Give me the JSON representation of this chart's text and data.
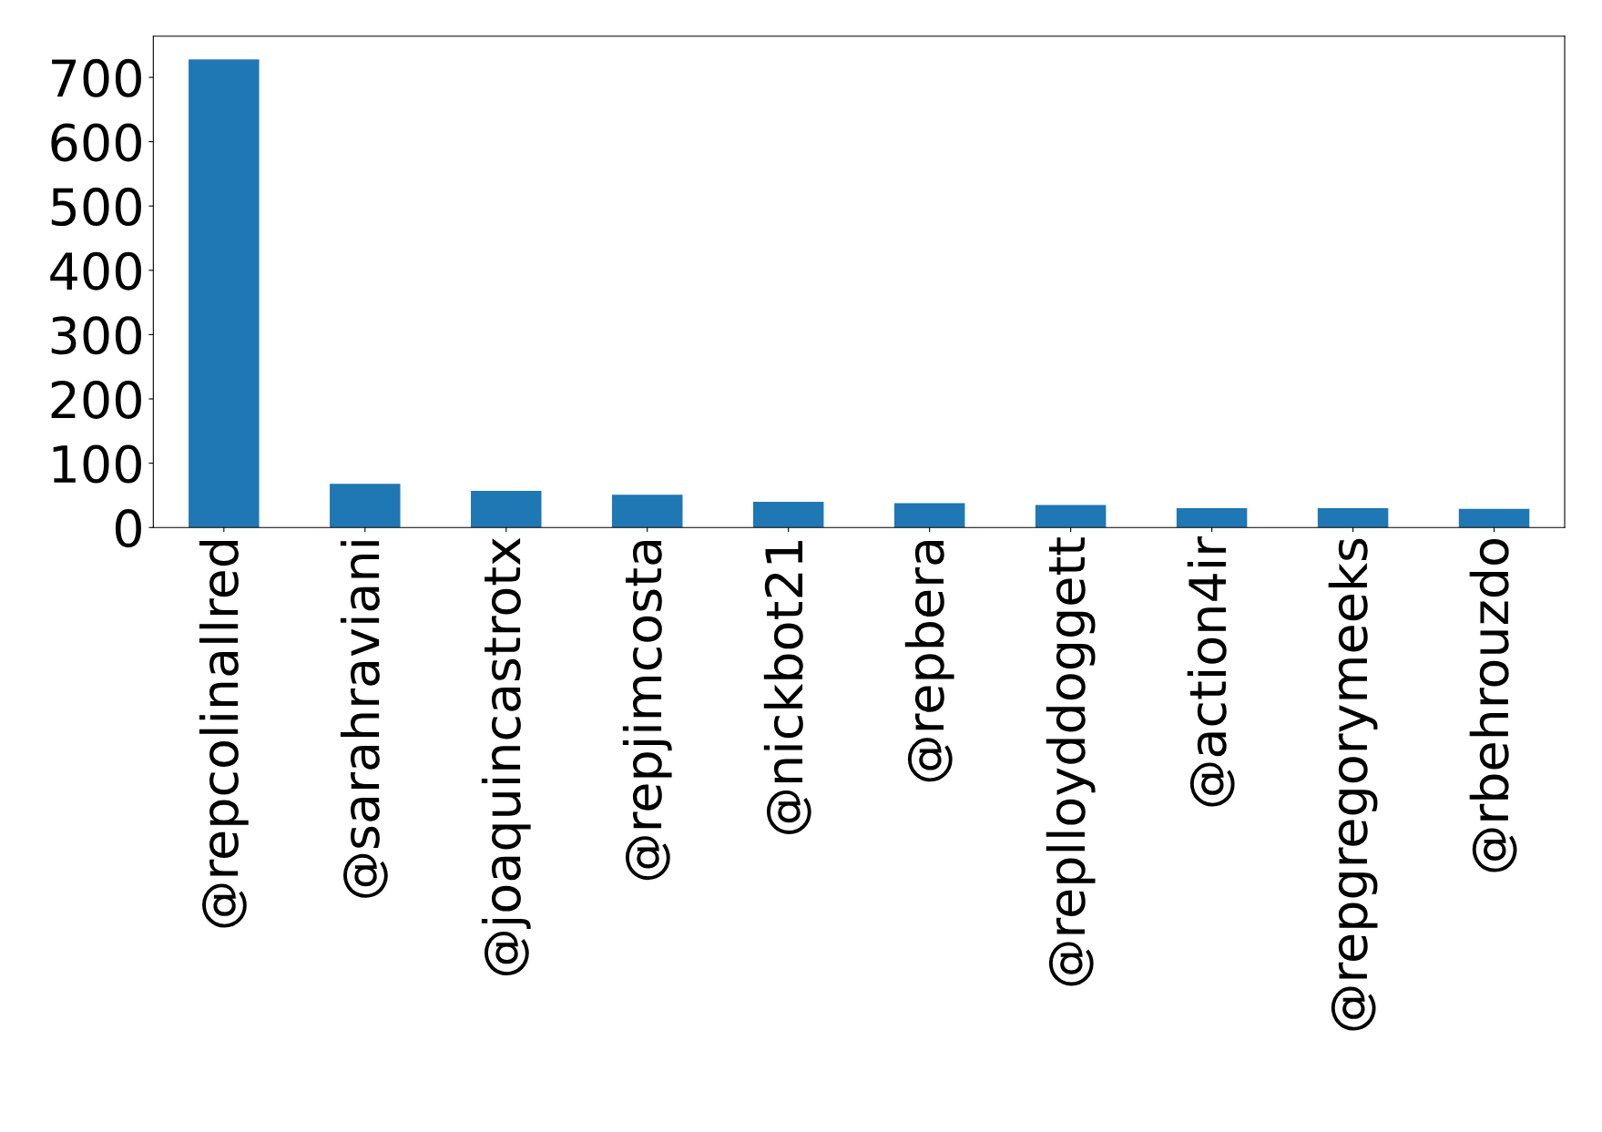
{
  "chart_data": {
    "type": "bar",
    "categories": [
      "@repcolinallred",
      "@sarahraviani",
      "@joaquincastrotx",
      "@repjimcosta",
      "@nickbot21",
      "@repbera",
      "@replloyddoggett",
      "@action4ir",
      "@repgregorymeeks",
      "@rbehrouzdo"
    ],
    "values": [
      728,
      68,
      57,
      51,
      40,
      38,
      35,
      30,
      30,
      29
    ],
    "color": "#1f77b4",
    "ylim": [
      0,
      764
    ],
    "yticks": [
      0,
      100,
      200,
      300,
      400,
      500,
      600,
      700
    ],
    "grid": false,
    "legend": false
  }
}
